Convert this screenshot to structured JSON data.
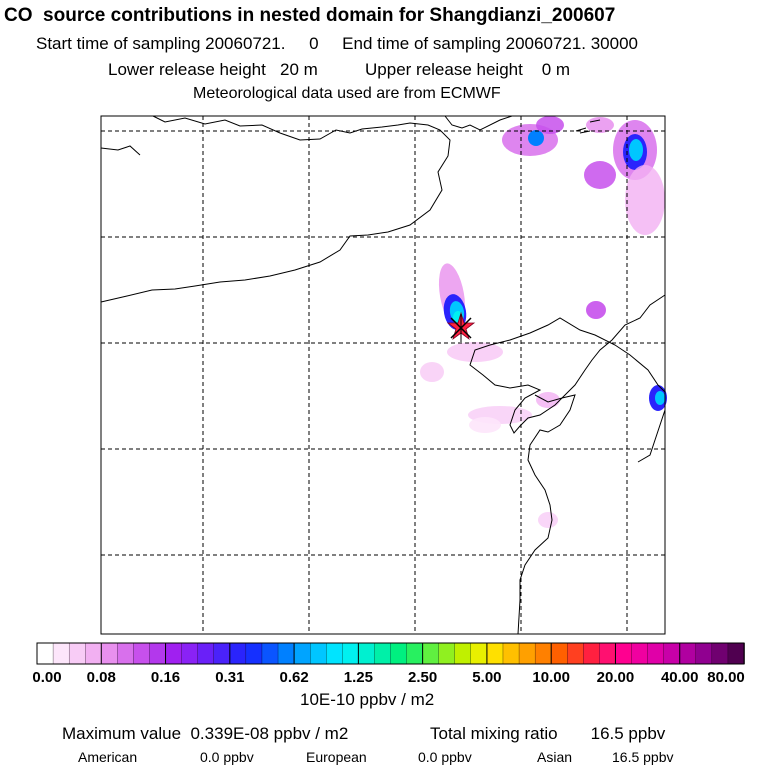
{
  "header": {
    "title": "CO  source contributions in nested domain for Shangdianzi_200607",
    "sampling": "Start time of sampling 20060721.     0     End time of sampling 20060721. 30000",
    "release": "Lower release height   20 m          Upper release height    0 m",
    "met": "Meteorological data used are from ECMWF"
  },
  "chart_data": {
    "type": "heatmap",
    "title": "CO  source contributions in nested domain for Shangdianzi_200607",
    "grid": true,
    "colorbar": {
      "ticks": [
        "0.00",
        "0.08",
        "0.16",
        "0.31",
        "0.62",
        "1.25",
        "2.50",
        "5.00",
        "10.00",
        "20.00",
        "40.00",
        "80.00"
      ],
      "units": "10E-10 ppbv / m2"
    },
    "source_marker": "receptor (star)",
    "plumes": [
      {
        "region": "receptor",
        "level": "0.62-1.25"
      },
      {
        "region": "north-east",
        "level": "0.62-1.25"
      },
      {
        "region": "east coast",
        "level": "0.31-0.62"
      },
      {
        "region": "south-east",
        "level": "0.00-0.08"
      }
    ]
  },
  "footer": {
    "max": "Maximum value  0.339E-08 ppbv / m2",
    "total": "Total mixing ratio       16.5 ppbv",
    "american_label": "American",
    "american_value": "0.0 ppbv",
    "european_label": "European",
    "european_value": "0.0 ppbv",
    "asian_label": "Asian",
    "asian_value": "16.5 ppbv"
  },
  "colors": {
    "scale": [
      "#ffffff",
      "#fde6fb",
      "#f8ccf6",
      "#f2b0f2",
      "#e890ee",
      "#d870ec",
      "#c750ec",
      "#b338ec",
      "#a020f0",
      "#8a22f5",
      "#6a20f8",
      "#4a22fa",
      "#2a24fc",
      "#1530ff",
      "#0a55ff",
      "#0080ff",
      "#00a4ff",
      "#00c6ff",
      "#00e4ff",
      "#00f0f0",
      "#00f0d0",
      "#00f0a8",
      "#00f080",
      "#28f060",
      "#60f040",
      "#90f020",
      "#c0f000",
      "#e8f000",
      "#ffe000",
      "#ffc000",
      "#ffa000",
      "#ff8000",
      "#ff6000",
      "#ff4020",
      "#ff2040",
      "#ff1070",
      "#ff0090",
      "#f000a0",
      "#e000a8",
      "#c800a8",
      "#b000a0",
      "#900090",
      "#700070",
      "#500050"
    ]
  }
}
